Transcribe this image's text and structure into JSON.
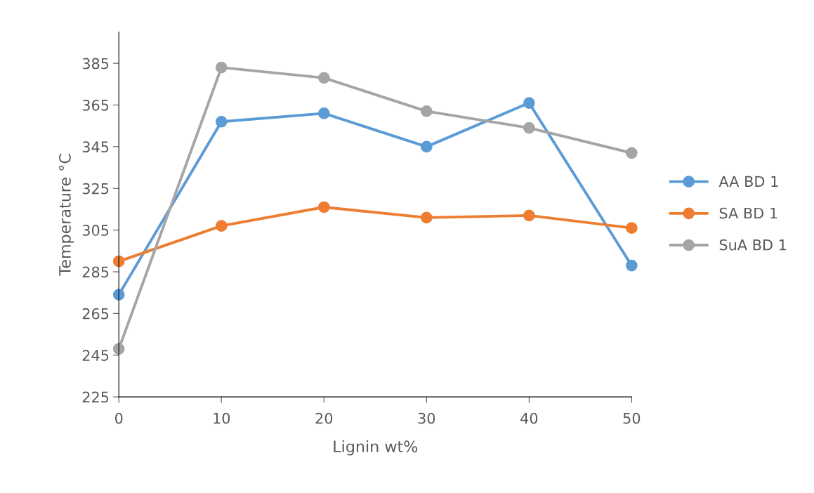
{
  "chart_data": {
    "type": "line",
    "xlabel": "Lignin wt%",
    "ylabel": "Temperature °C",
    "categories": [
      "0",
      "10",
      "20",
      "30",
      "40",
      "50"
    ],
    "series": [
      {
        "name": "AA BD 1",
        "color": "#5b9bd5",
        "values": [
          274,
          357,
          361,
          345,
          366,
          288
        ]
      },
      {
        "name": "SA BD 1",
        "color": "#ed7d31",
        "values": [
          290,
          307,
          316,
          311,
          312,
          306
        ]
      },
      {
        "name": "SuA BD 1",
        "color": "#a5a5a5",
        "values": [
          248,
          383,
          378,
          362,
          354,
          342
        ]
      }
    ],
    "ylim": [
      225,
      400
    ],
    "yticks": [
      225,
      245,
      265,
      285,
      305,
      325,
      345,
      365,
      385
    ],
    "grid": false,
    "legend": "right",
    "marker": "circle",
    "line_style": "solid"
  }
}
